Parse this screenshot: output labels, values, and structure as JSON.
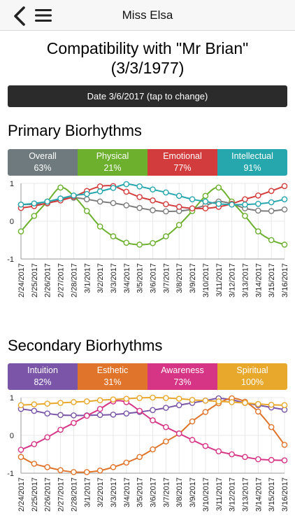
{
  "nav": {
    "title": "Miss Elsa"
  },
  "header": {
    "title_line1": "Compatibility with \"Mr Brian\"",
    "title_line2": "(3/3/1977)"
  },
  "date_button": {
    "label": "Date 3/6/2017 (tap to change)"
  },
  "primary": {
    "title": "Primary Biorhythms",
    "tabs": [
      {
        "name": "Overall",
        "value": "63%",
        "color": "#6e7a7d"
      },
      {
        "name": "Physical",
        "value": "21%",
        "color": "#6cb02e"
      },
      {
        "name": "Emotional",
        "value": "77%",
        "color": "#d33c3c"
      },
      {
        "name": "Intellectual",
        "value": "91%",
        "color": "#26a6ad"
      }
    ]
  },
  "secondary": {
    "title": "Secondary Biorhythms",
    "tabs": [
      {
        "name": "Intuition",
        "value": "82%",
        "color": "#7a55a8"
      },
      {
        "name": "Esthetic",
        "value": "31%",
        "color": "#e0742a"
      },
      {
        "name": "Awareness",
        "value": "73%",
        "color": "#d63585"
      },
      {
        "name": "Spiritual",
        "value": "100%",
        "color": "#e8a82c"
      }
    ]
  },
  "chart_data": [
    {
      "type": "line",
      "x": [
        "2/24/2017",
        "2/25/2017",
        "2/26/2017",
        "2/27/2017",
        "2/28/2017",
        "3/1/2017",
        "3/2/2017",
        "3/3/2017",
        "3/4/2017",
        "3/5/2017",
        "3/6/2017",
        "3/7/2017",
        "3/8/2017",
        "3/9/2017",
        "3/10/2017",
        "3/11/2017",
        "3/12/2017",
        "3/13/2017",
        "3/14/2017",
        "3/15/2017",
        "3/16/2017"
      ],
      "yticks": [
        "1",
        "0",
        "-1"
      ],
      "ylim": [
        -1,
        1
      ],
      "series": [
        {
          "name": "Overall",
          "color": "#7d7d7d",
          "values": [
            0.44,
            0.45,
            0.47,
            0.58,
            0.62,
            0.58,
            0.52,
            0.48,
            0.42,
            0.35,
            0.29,
            0.26,
            0.27,
            0.32,
            0.42,
            0.52,
            0.46,
            0.34,
            0.28,
            0.27,
            0.31
          ]
        },
        {
          "name": "Physical",
          "color": "#6cb02e",
          "values": [
            -0.27,
            0.14,
            0.52,
            0.89,
            0.67,
            0.27,
            -0.14,
            -0.4,
            -0.57,
            -0.62,
            -0.58,
            -0.4,
            -0.1,
            0.27,
            0.67,
            0.89,
            0.52,
            0.14,
            -0.27,
            -0.5,
            -0.62
          ]
        },
        {
          "name": "Emotional",
          "color": "#d33c3c",
          "values": [
            0.35,
            0.4,
            0.48,
            0.55,
            0.65,
            0.8,
            0.92,
            0.93,
            0.78,
            0.64,
            0.55,
            0.45,
            0.38,
            0.34,
            0.34,
            0.38,
            0.46,
            0.58,
            0.68,
            0.8,
            0.93
          ]
        },
        {
          "name": "Intellectual",
          "color": "#26a6ad",
          "values": [
            0.44,
            0.47,
            0.52,
            0.6,
            0.68,
            0.72,
            0.79,
            0.88,
            0.98,
            0.92,
            0.84,
            0.76,
            0.67,
            0.58,
            0.52,
            0.46,
            0.44,
            0.44,
            0.46,
            0.5,
            0.58
          ]
        }
      ]
    },
    {
      "type": "line",
      "x": [
        "2/24/2017",
        "2/25/2017",
        "2/26/2017",
        "2/27/2017",
        "2/28/2017",
        "3/1/2017",
        "3/2/2017",
        "3/3/2017",
        "3/4/2017",
        "3/5/2017",
        "3/6/2017",
        "3/7/2017",
        "3/8/2017",
        "3/9/2017",
        "3/10/2017",
        "3/11/2017",
        "3/12/2017",
        "3/13/2017",
        "3/14/2017",
        "3/15/2017",
        "3/16/2017"
      ],
      "yticks": [
        "1",
        "0",
        "-1"
      ],
      "ylim": [
        -1,
        1
      ],
      "series": [
        {
          "name": "Intuition",
          "color": "#7a55a8",
          "values": [
            0.7,
            0.65,
            0.58,
            0.54,
            0.53,
            0.53,
            0.54,
            0.55,
            0.58,
            0.62,
            0.67,
            0.73,
            0.8,
            0.86,
            0.92,
            0.98,
            0.94,
            0.86,
            0.8,
            0.74,
            0.68
          ]
        },
        {
          "name": "Esthetic",
          "color": "#e0742a",
          "values": [
            -0.57,
            -0.75,
            -0.84,
            -0.92,
            -0.97,
            -0.97,
            -0.93,
            -0.84,
            -0.72,
            -0.57,
            -0.37,
            -0.16,
            0.05,
            0.37,
            0.62,
            0.85,
            0.98,
            0.89,
            0.63,
            0.22,
            -0.25
          ]
        },
        {
          "name": "Awareness",
          "color": "#d63585",
          "values": [
            -0.38,
            -0.23,
            -0.05,
            0.15,
            0.33,
            0.52,
            0.7,
            0.9,
            0.88,
            0.65,
            0.4,
            0.22,
            0.05,
            -0.12,
            -0.28,
            -0.42,
            -0.5,
            -0.57,
            -0.63,
            -0.65,
            -0.66
          ]
        },
        {
          "name": "Spiritual",
          "color": "#e8a82c",
          "values": [
            0.8,
            0.82,
            0.84,
            0.86,
            0.88,
            0.9,
            0.93,
            0.95,
            0.97,
            0.99,
            1.0,
            0.99,
            0.97,
            0.94,
            0.92,
            0.9,
            0.88,
            0.86,
            0.83,
            0.81,
            0.8
          ]
        }
      ]
    }
  ]
}
